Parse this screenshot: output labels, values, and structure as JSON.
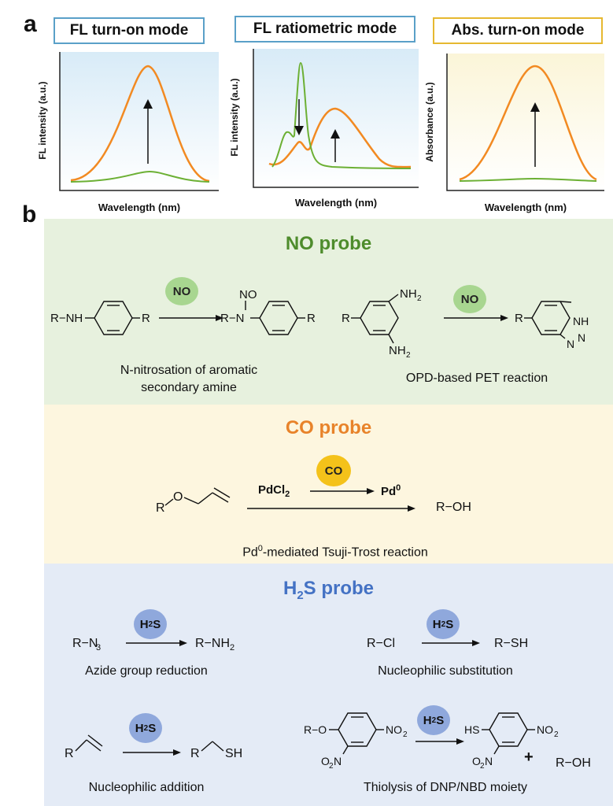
{
  "panel_a": {
    "letter": "a",
    "modes": [
      "FL turn-on mode",
      "FL ratiometric mode",
      "Abs. turn-on mode"
    ],
    "xlabel": "Wavelength (nm)",
    "ylabels": [
      "FL intensity (a.u.)",
      "FL intensity (a.u.)",
      "Absorbance (a.u.)"
    ]
  },
  "panel_b": {
    "letter": "b",
    "no": {
      "title": "NO probe",
      "analyte": "NO",
      "caption1_line1": "N-nitrosation of aromatic",
      "caption1_line2": "secondary amine",
      "caption2": "OPD-based PET reaction"
    },
    "co": {
      "title": "CO probe",
      "analyte": "CO",
      "reagent": "PdCl",
      "reagent_sub": "2",
      "pd0": "Pd",
      "pd0_sup": "0",
      "product": "R−OH",
      "caption_pre": "Pd",
      "caption_sup": "0",
      "caption_post": "-mediated Tsuji-Trost reaction"
    },
    "h2s": {
      "title_pre": "H",
      "title_sub": "2",
      "title_post": "S probe",
      "analyte_pre": "H",
      "analyte_sub": "2",
      "analyte_post": "S",
      "captions": [
        "Azide group reduction",
        "Nucleophilic substitution",
        "Nucleophilic addition",
        "Thiolysis of DNP/NBD moiety"
      ]
    }
  },
  "colors": {
    "orange": "#f28a22",
    "green": "#6cb034",
    "no_band": "#e7f1de",
    "co_band": "#fdf6df",
    "h2s_band": "#e4ebf6",
    "no_title": "#4e8c2c",
    "co_title": "#e8832a",
    "h2s_title": "#4472c4"
  }
}
